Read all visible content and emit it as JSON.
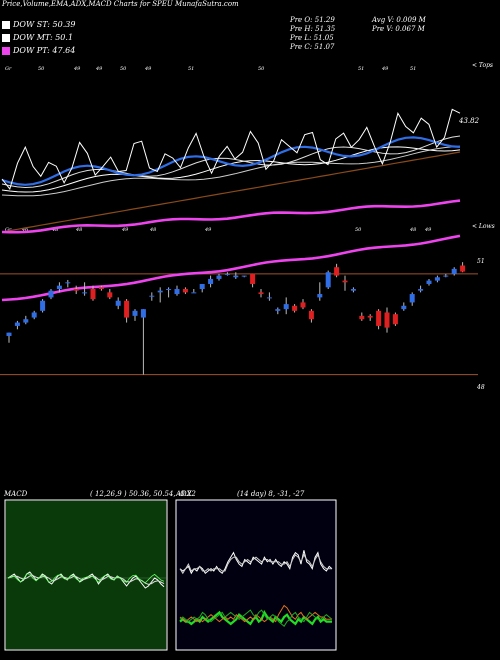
{
  "header": {
    "title": "Price,Volume,EMA,ADX,MACD Charts for SPEU MunafaSutra.com"
  },
  "legend": [
    {
      "label": "DOW ST: 50.39",
      "color": "#ffffff"
    },
    {
      "label": "DOW MT: 50.1",
      "color": "#ffffff"
    },
    {
      "label": "DOW PT: 47.64",
      "color": "#ee44ee"
    }
  ],
  "stats": {
    "open": "Pre   O: 51.29",
    "high": "Pre   H: 51.35",
    "low": "Pre   L: 51.05",
    "close": "Pre   C: 51.07",
    "avg_vol": "Avg V: 0.009 M",
    "pre_vol": "Pre   V: 0.067 M"
  },
  "markers": {
    "top_labels": [
      "Gr",
      "50",
      "49",
      "49",
      "50",
      "49",
      "51",
      "50",
      "51",
      "49",
      "51"
    ],
    "top_right": "< Tops",
    "bottom_labels": [
      "Gr",
      "46",
      "48",
      "48",
      "49",
      "48",
      "49",
      "50",
      "48",
      "49"
    ],
    "bottom_right": "< Lows",
    "ema_label": "43.82"
  },
  "price_axis": {
    "upper": "51",
    "lower": "48"
  },
  "macd_panel": {
    "title": "MACD",
    "params": "( 12,26,9 ) 50.36, 50.54, -0.22"
  },
  "adx_panel": {
    "title": "ADX",
    "params": "(14 day) 8, -31, -27"
  },
  "chart_data": [
    {
      "type": "candlestick",
      "title": "Price,Volume,EMA,ADX,MACD Charts for SPEU MunafaSutra.com",
      "ylim": [
        47.6,
        52.1
      ],
      "reference_lines": [
        51,
        48
      ],
      "candles": [
        {
          "o": 49.15,
          "h": 49.25,
          "l": 48.95,
          "c": 49.25
        },
        {
          "o": 49.45,
          "h": 49.6,
          "l": 49.35,
          "c": 49.55
        },
        {
          "o": 49.55,
          "h": 49.75,
          "l": 49.5,
          "c": 49.65
        },
        {
          "o": 49.7,
          "h": 49.9,
          "l": 49.65,
          "c": 49.85
        },
        {
          "o": 49.9,
          "h": 50.25,
          "l": 49.85,
          "c": 50.2
        },
        {
          "o": 50.3,
          "h": 50.55,
          "l": 50.25,
          "c": 50.5
        },
        {
          "o": 50.55,
          "h": 50.75,
          "l": 50.45,
          "c": 50.65
        },
        {
          "o": 50.72,
          "h": 50.82,
          "l": 50.6,
          "c": 50.75
        },
        {
          "o": 50.55,
          "h": 50.65,
          "l": 50.4,
          "c": 50.5
        },
        {
          "o": 50.45,
          "h": 50.75,
          "l": 50.35,
          "c": 50.45
        },
        {
          "o": 50.55,
          "h": 50.65,
          "l": 50.2,
          "c": 50.25
        },
        {
          "o": 50.6,
          "h": 50.65,
          "l": 50.5,
          "c": 50.55
        },
        {
          "o": 50.45,
          "h": 50.55,
          "l": 50.25,
          "c": 50.3
        },
        {
          "o": 50.05,
          "h": 50.3,
          "l": 49.95,
          "c": 50.2
        },
        {
          "o": 50.2,
          "h": 50.25,
          "l": 49.55,
          "c": 49.7
        },
        {
          "o": 49.75,
          "h": 49.95,
          "l": 49.6,
          "c": 49.9
        },
        {
          "o": 49.7,
          "h": 49.95,
          "l": 48.0,
          "c": 49.95
        },
        {
          "o": 50.35,
          "h": 50.45,
          "l": 50.2,
          "c": 50.35
        },
        {
          "o": 50.45,
          "h": 50.6,
          "l": 50.15,
          "c": 50.5
        },
        {
          "o": 50.55,
          "h": 50.6,
          "l": 50.3,
          "c": 50.55
        },
        {
          "o": 50.4,
          "h": 50.65,
          "l": 50.35,
          "c": 50.55
        },
        {
          "o": 50.55,
          "h": 50.6,
          "l": 50.4,
          "c": 50.45
        },
        {
          "o": 50.45,
          "h": 50.55,
          "l": 50.45,
          "c": 50.45
        },
        {
          "o": 50.55,
          "h": 50.7,
          "l": 50.45,
          "c": 50.7
        },
        {
          "o": 50.7,
          "h": 50.95,
          "l": 50.6,
          "c": 50.85
        },
        {
          "o": 50.85,
          "h": 51.0,
          "l": 50.8,
          "c": 50.95
        },
        {
          "o": 51.0,
          "h": 51.05,
          "l": 50.95,
          "c": 51.0
        },
        {
          "o": 50.9,
          "h": 51.05,
          "l": 50.85,
          "c": 50.95
        },
        {
          "o": 50.95,
          "h": 50.95,
          "l": 50.9,
          "c": 50.95
        },
        {
          "o": 51.0,
          "h": 51.0,
          "l": 50.6,
          "c": 50.7
        },
        {
          "o": 50.45,
          "h": 50.55,
          "l": 50.3,
          "c": 50.4
        },
        {
          "o": 50.3,
          "h": 50.45,
          "l": 50.2,
          "c": 50.3
        },
        {
          "o": 49.9,
          "h": 50.0,
          "l": 49.8,
          "c": 49.95
        },
        {
          "o": 49.95,
          "h": 50.3,
          "l": 49.8,
          "c": 50.1
        },
        {
          "o": 50.05,
          "h": 50.1,
          "l": 49.85,
          "c": 49.9
        },
        {
          "o": 50.15,
          "h": 50.25,
          "l": 49.95,
          "c": 50.0
        },
        {
          "o": 49.9,
          "h": 49.95,
          "l": 49.55,
          "c": 49.65
        },
        {
          "o": 50.3,
          "h": 50.75,
          "l": 50.2,
          "c": 50.4
        },
        {
          "o": 50.6,
          "h": 51.1,
          "l": 50.55,
          "c": 51.05
        },
        {
          "o": 51.2,
          "h": 51.3,
          "l": 50.9,
          "c": 50.95
        },
        {
          "o": 50.8,
          "h": 50.95,
          "l": 50.5,
          "c": 50.75
        },
        {
          "o": 50.5,
          "h": 50.6,
          "l": 50.45,
          "c": 50.55
        },
        {
          "o": 49.75,
          "h": 49.85,
          "l": 49.6,
          "c": 49.65
        },
        {
          "o": 49.75,
          "h": 49.8,
          "l": 49.6,
          "c": 49.7
        },
        {
          "o": 49.9,
          "h": 49.95,
          "l": 49.35,
          "c": 49.45
        },
        {
          "o": 49.85,
          "h": 50.0,
          "l": 49.25,
          "c": 49.4
        },
        {
          "o": 49.8,
          "h": 49.85,
          "l": 49.45,
          "c": 49.5
        },
        {
          "o": 49.95,
          "h": 50.15,
          "l": 49.9,
          "c": 50.05
        },
        {
          "o": 50.15,
          "h": 50.45,
          "l": 50.05,
          "c": 50.4
        },
        {
          "o": 50.5,
          "h": 50.65,
          "l": 50.45,
          "c": 50.55
        },
        {
          "o": 50.7,
          "h": 50.85,
          "l": 50.65,
          "c": 50.8
        },
        {
          "o": 50.8,
          "h": 50.95,
          "l": 50.75,
          "c": 50.9
        },
        {
          "o": 50.95,
          "h": 51.0,
          "l": 50.9,
          "c": 50.95
        },
        {
          "o": 51.0,
          "h": 51.2,
          "l": 50.95,
          "c": 51.15
        },
        {
          "o": 51.25,
          "h": 51.35,
          "l": 51.05,
          "c": 51.07
        }
      ]
    },
    {
      "type": "line",
      "title": "MACD",
      "series": [
        {
          "values": [
            0.0,
            0.05,
            0.1,
            0.0,
            -0.1,
            -0.05,
            0.1,
            0.15,
            0.05,
            -0.05,
            0.0,
            0.1,
            0.05,
            -0.1,
            -0.15,
            -0.05,
            0.05,
            0.1,
            0.0,
            -0.05,
            0.05,
            0.1,
            0.0,
            -0.1,
            -0.05,
            0.0,
            0.05,
            0.1,
            0.0,
            -0.15,
            -0.05,
            0.05,
            0.1,
            0.0,
            -0.05,
            0.05,
            0.0,
            -0.1,
            -0.2,
            -0.1,
            0.0,
            0.05,
            -0.05,
            -0.15,
            -0.25,
            -0.2,
            -0.1,
            0.0,
            -0.05,
            -0.15,
            -0.22
          ]
        },
        {
          "values": [
            0.0,
            0.02,
            0.05,
            0.04,
            0.0,
            -0.03,
            0.0,
            0.05,
            0.06,
            0.02,
            0.0,
            0.03,
            0.04,
            0.0,
            -0.06,
            -0.06,
            -0.02,
            0.03,
            0.02,
            -0.01,
            0.0,
            0.04,
            0.03,
            -0.02,
            -0.04,
            -0.02,
            0.01,
            0.05,
            0.03,
            -0.04,
            -0.05,
            -0.01,
            0.04,
            0.03,
            0.0,
            0.01,
            0.01,
            -0.03,
            -0.09,
            -0.1,
            -0.06,
            -0.02,
            -0.03,
            -0.07,
            -0.13,
            -0.16,
            -0.14,
            -0.09,
            -0.07,
            -0.1,
            -0.14
          ]
        },
        {
          "values": [
            0.0,
            0.03,
            0.05,
            -0.04,
            -0.1,
            -0.02,
            0.1,
            0.1,
            -0.01,
            -0.07,
            0.0,
            0.07,
            0.01,
            -0.1,
            -0.09,
            0.01,
            0.07,
            0.07,
            -0.02,
            -0.04,
            0.05,
            0.06,
            -0.03,
            -0.08,
            -0.01,
            0.02,
            0.04,
            0.05,
            -0.03,
            -0.11,
            0.0,
            0.06,
            0.06,
            -0.03,
            -0.05,
            0.04,
            -0.01,
            -0.07,
            -0.11,
            0.0,
            0.06,
            0.07,
            -0.02,
            -0.08,
            -0.12,
            -0.04,
            0.04,
            0.09,
            0.02,
            -0.05,
            -0.08
          ]
        }
      ]
    },
    {
      "type": "line",
      "title": "ADX",
      "series": [
        {
          "values": [
            31,
            30,
            31,
            32,
            29,
            31,
            30,
            32,
            31,
            29,
            30,
            31,
            30,
            32,
            30,
            29,
            31,
            34,
            36,
            38,
            35,
            33,
            32,
            35,
            34,
            33,
            36,
            35,
            34,
            33,
            36,
            34,
            35,
            33,
            35,
            33,
            32,
            34,
            33,
            31,
            36,
            38,
            37,
            33,
            39,
            34,
            33,
            31,
            36,
            38,
            33,
            31,
            30,
            32,
            31
          ]
        },
        {
          "values": [
            31,
            29,
            31,
            33,
            30,
            31,
            31,
            32,
            30,
            30,
            31,
            30,
            31,
            31,
            31,
            30,
            30,
            33,
            35,
            36,
            36,
            34,
            33,
            34,
            35,
            34,
            35,
            36,
            35,
            34,
            35,
            35,
            34,
            34,
            34,
            34,
            33,
            33,
            34,
            32,
            35,
            37,
            36,
            34,
            37,
            35,
            34,
            32,
            35,
            37,
            34,
            32,
            31,
            31,
            31
          ]
        },
        {
          "values": [
            8,
            9,
            8,
            8,
            7,
            8,
            9,
            8,
            10,
            9,
            8,
            9,
            10,
            11,
            12,
            10,
            9,
            8,
            7,
            8,
            9,
            11,
            10,
            9,
            8,
            7,
            9,
            10,
            8,
            9,
            12,
            10,
            9,
            8,
            10,
            9,
            8,
            10,
            11,
            9,
            8,
            7,
            9,
            8,
            10,
            9,
            8,
            7,
            9,
            10,
            8,
            9,
            8,
            8,
            8
          ]
        },
        {
          "values": [
            10,
            9,
            8,
            9,
            10,
            9,
            8,
            9,
            8,
            9,
            10,
            11,
            10,
            9,
            8,
            9,
            10,
            9,
            10,
            9,
            11,
            10,
            9,
            8,
            9,
            10,
            9,
            11,
            10,
            9,
            8,
            9,
            10,
            9,
            8,
            11,
            13,
            15,
            14,
            12,
            10,
            9,
            11,
            12,
            10,
            9,
            10,
            11,
            12,
            11,
            10,
            10,
            9,
            9,
            9
          ]
        },
        {
          "values": [
            9,
            10,
            9,
            8,
            9,
            10,
            9,
            10,
            12,
            11,
            9,
            8,
            9,
            10,
            11,
            12,
            10,
            11,
            12,
            11,
            10,
            9,
            10,
            11,
            12,
            13,
            11,
            10,
            12,
            13,
            11,
            9,
            10,
            11,
            10,
            8,
            7,
            6,
            8,
            9,
            11,
            12,
            10,
            9,
            8,
            10,
            12,
            11,
            10,
            9,
            9,
            10,
            11,
            10,
            9
          ]
        }
      ]
    }
  ]
}
